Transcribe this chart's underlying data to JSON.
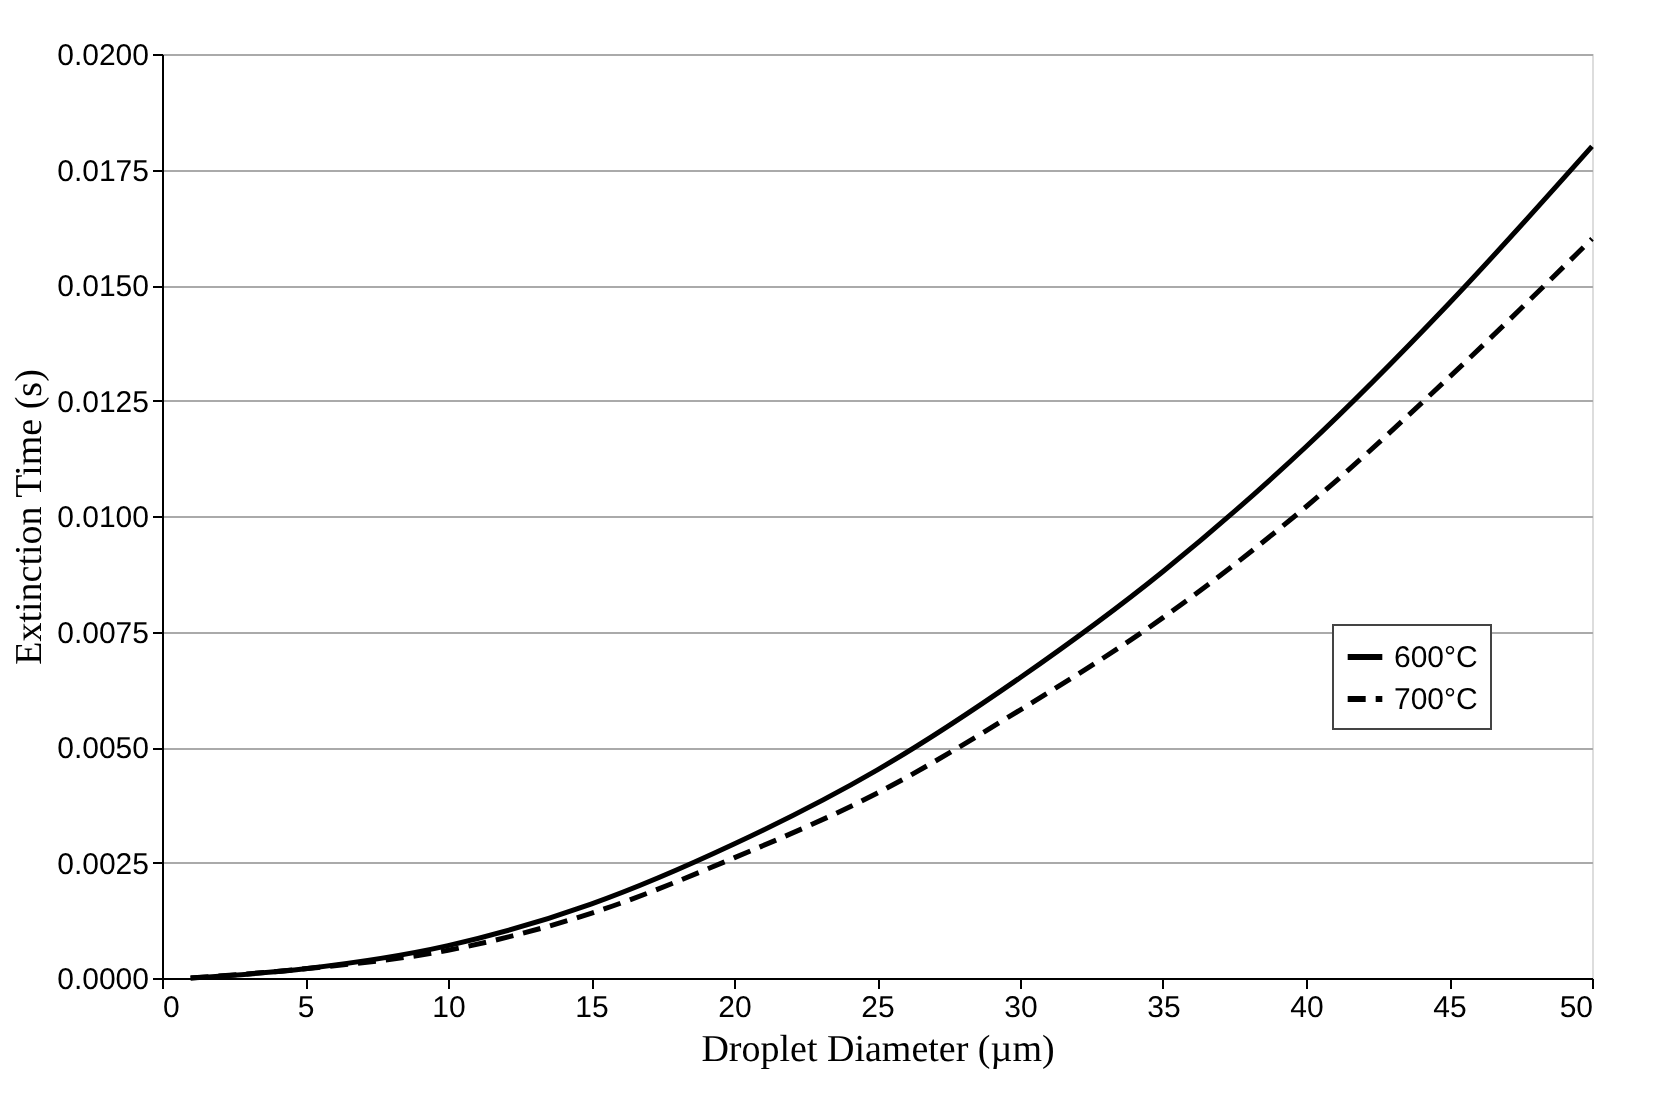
{
  "chart_data": {
    "type": "line",
    "xlabel": "Droplet Diameter (µm)",
    "ylabel": "Extinction Time (s)",
    "x": [
      1,
      5,
      10,
      15,
      20,
      25,
      30,
      35,
      40,
      45,
      50
    ],
    "series": [
      {
        "name": "600°C",
        "color": "#000000",
        "line_style": "solid",
        "values": [
          0.0,
          0.0002,
          0.0007,
          0.0016,
          0.0029,
          0.0045,
          0.0065,
          0.0088,
          0.0115,
          0.0146,
          0.018
        ]
      },
      {
        "name": "700°C",
        "color": "#000000",
        "line_style": "dashed",
        "values": [
          0.0,
          0.0002,
          0.0006,
          0.0014,
          0.0026,
          0.004,
          0.0058,
          0.0078,
          0.0102,
          0.013,
          0.016
        ]
      }
    ],
    "xlim": [
      0,
      50
    ],
    "xticks": [
      0,
      5,
      10,
      15,
      20,
      25,
      30,
      35,
      40,
      45,
      50
    ],
    "ylim": [
      0,
      0.02
    ],
    "yticks": [
      {
        "value": 0,
        "label": "0.0000"
      },
      {
        "value": 0.0025,
        "label": "0.0025"
      },
      {
        "value": 0.005,
        "label": "0.0050"
      },
      {
        "value": 0.0075,
        "label": "0.0075"
      },
      {
        "value": 0.01,
        "label": "0.0100"
      },
      {
        "value": 0.0125,
        "label": "0.0125"
      },
      {
        "value": 0.015,
        "label": "0.0150"
      },
      {
        "value": 0.0175,
        "label": "0.0175"
      },
      {
        "value": 0.02,
        "label": "0.0200"
      }
    ],
    "grid": "y",
    "legend": "right",
    "marker": "none"
  }
}
